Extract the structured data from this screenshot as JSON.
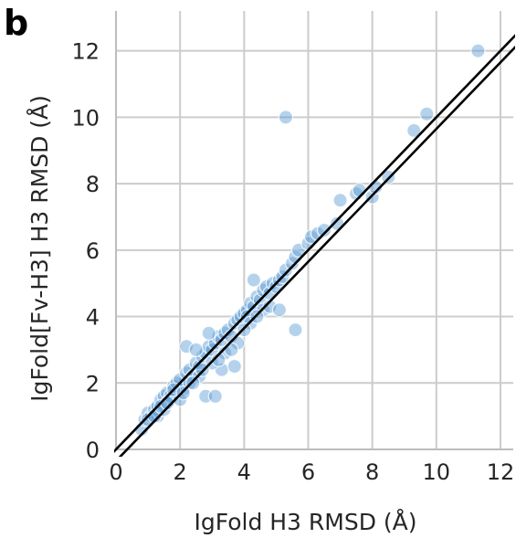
{
  "panel_label": "b",
  "chart_data": {
    "type": "scatter",
    "xlabel": "IgFold H3 RMSD (Å)",
    "ylabel": "IgFold[Fv-H3] H3 RMSD (Å)",
    "xlim": [
      0,
      12.4
    ],
    "ylim": [
      0,
      13.2
    ],
    "xticks": [
      0,
      2,
      4,
      6,
      8,
      10,
      12
    ],
    "yticks": [
      0,
      2,
      4,
      6,
      8,
      10,
      12
    ],
    "grid": true,
    "point_color": "#5b9bd5",
    "line_color": "#000000",
    "reference_lines": [
      {
        "intercept": 0.0
      },
      {
        "intercept": -0.35
      }
    ],
    "x": [
      0.8,
      0.9,
      1.0,
      1.1,
      1.2,
      1.3,
      1.4,
      1.5,
      1.6,
      1.7,
      1.8,
      1.9,
      2.0,
      2.1,
      2.2,
      2.3,
      2.4,
      2.5,
      2.6,
      2.7,
      2.8,
      2.9,
      3.0,
      3.1,
      3.2,
      3.3,
      3.4,
      3.5,
      3.6,
      3.7,
      3.8,
      3.9,
      4.0,
      4.1,
      4.2,
      4.3,
      4.4,
      4.5,
      4.6,
      4.7,
      4.8,
      4.9,
      5.0,
      5.1,
      5.2,
      5.3,
      5.5,
      5.6,
      5.7,
      6.0,
      6.1,
      6.3,
      6.5,
      6.9,
      7.0,
      7.5,
      7.6,
      8.0,
      8.1,
      8.5,
      9.3,
      9.7,
      11.3,
      5.3,
      5.6,
      2.8,
      3.1,
      2.2,
      2.5,
      2.9,
      3.3,
      3.7,
      4.1,
      4.3,
      1.3,
      1.5,
      1.7,
      2.0,
      2.3,
      2.6,
      3.0,
      3.4,
      3.8,
      4.2,
      4.6,
      1.0,
      1.2,
      1.4,
      1.6,
      1.8,
      2.1,
      2.4,
      2.7,
      3.2,
      3.6,
      4.0,
      4.4,
      4.8,
      5.1
    ],
    "y": [
      0.6,
      0.9,
      1.1,
      1.0,
      1.2,
      1.3,
      1.5,
      1.6,
      1.7,
      1.6,
      1.9,
      2.0,
      2.1,
      1.8,
      2.3,
      2.4,
      2.2,
      2.6,
      2.5,
      2.8,
      2.9,
      3.1,
      3.0,
      3.2,
      3.4,
      3.3,
      3.5,
      3.6,
      3.4,
      3.8,
      3.9,
      4.0,
      4.1,
      4.2,
      4.4,
      4.3,
      4.6,
      4.5,
      4.8,
      4.9,
      4.7,
      5.0,
      4.9,
      5.1,
      5.2,
      5.4,
      5.6,
      5.8,
      6.0,
      6.2,
      6.4,
      6.5,
      6.6,
      6.8,
      7.5,
      7.7,
      7.8,
      7.6,
      7.9,
      8.2,
      9.6,
      10.1,
      12.0,
      10.0,
      3.6,
      1.6,
      1.6,
      3.1,
      3.0,
      3.5,
      2.4,
      2.5,
      4.0,
      5.1,
      1.0,
      1.2,
      1.5,
      1.5,
      2.0,
      2.2,
      2.6,
      2.9,
      3.2,
      3.8,
      4.2,
      0.9,
      1.0,
      1.3,
      1.4,
      1.8,
      1.7,
      2.0,
      2.4,
      2.7,
      3.0,
      3.6,
      4.0,
      4.3,
      4.2
    ]
  }
}
